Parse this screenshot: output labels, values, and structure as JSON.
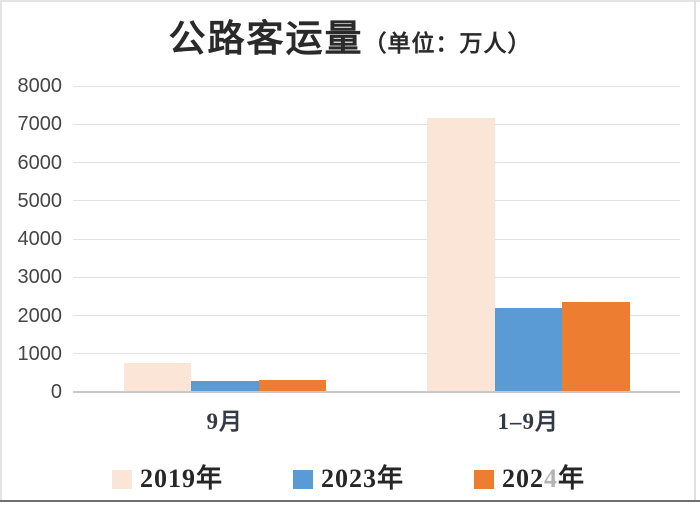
{
  "title": {
    "main": "公路客运量",
    "unit": "（单位：万人）"
  },
  "chart_data": {
    "type": "bar",
    "title": "公路客运量（单位：万人）",
    "categories": [
      "9月",
      "1–9月"
    ],
    "series": [
      {
        "name": "2019年",
        "color": "#FBE5D6",
        "values": [
          720,
          7150
        ]
      },
      {
        "name": "2023年",
        "color": "#5B9BD5",
        "values": [
          250,
          2170
        ]
      },
      {
        "name": "2024年",
        "color": "#ED7D31",
        "values": [
          290,
          2340
        ]
      }
    ],
    "ylim": [
      0,
      8000
    ],
    "yticks": [
      0,
      1000,
      2000,
      3000,
      4000,
      5000,
      6000,
      7000,
      8000
    ],
    "grid": "horizontal",
    "legend_position": "bottom",
    "xlabel": "",
    "ylabel": ""
  },
  "legend": {
    "items": [
      {
        "label": "2019年",
        "color": "#FBE5D6"
      },
      {
        "label": "2023年",
        "color": "#5B9BD5"
      },
      {
        "label": "2024年",
        "color": "#ED7D31",
        "label_parts": {
          "pre": "202",
          "faded": "4",
          "post": "年"
        }
      }
    ]
  },
  "colors": {
    "gridline": "#E2E2E2",
    "axis_line": "#C9C9C9",
    "title_text": "#2A2A2A",
    "tick_text": "#454545",
    "legend_text": "#262626",
    "faded_digit": "#B3B3B3",
    "bottom_rule": "#6F6F6F"
  }
}
